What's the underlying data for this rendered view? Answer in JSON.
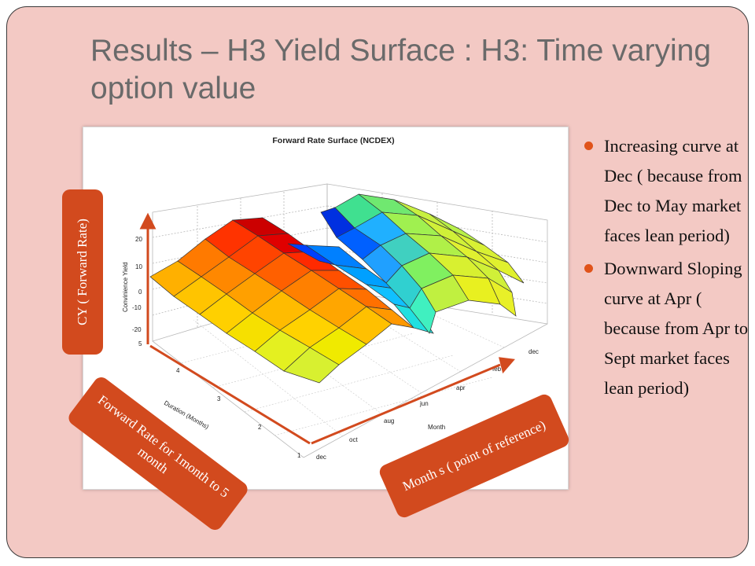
{
  "slide": {
    "title": "Results – H3 Yield Surface : H3: Time varying option value",
    "bullets": [
      "Increasing curve at Dec ( because from Dec to May market faces lean period)",
      "Downward Sloping curve at Apr ( because from Apr to Sept market faces lean period)"
    ],
    "callouts": {
      "cy": "CY ( Forward Rate)",
      "forward_rate": "Forward Rate for 1month to 5 month",
      "months": "Month s ( point of reference)"
    },
    "accent_color": "#d24a1e",
    "background_color": "#f3c9c4"
  },
  "chart_data": {
    "type": "surface",
    "title": "Forward Rate Surface (NCDEX)",
    "zlabel": "Convinience Yield",
    "ylabel": "Duration (Months)",
    "xlabel": "Month",
    "z_ticks": [
      "20",
      "10",
      "0",
      "-10",
      "-20"
    ],
    "duration_ticks": [
      "5",
      "4",
      "3",
      "2",
      "1"
    ],
    "month_ticks": [
      "dec",
      "oct",
      "aug",
      "jun",
      "apr",
      "feb",
      "dec"
    ],
    "grid": true
  }
}
